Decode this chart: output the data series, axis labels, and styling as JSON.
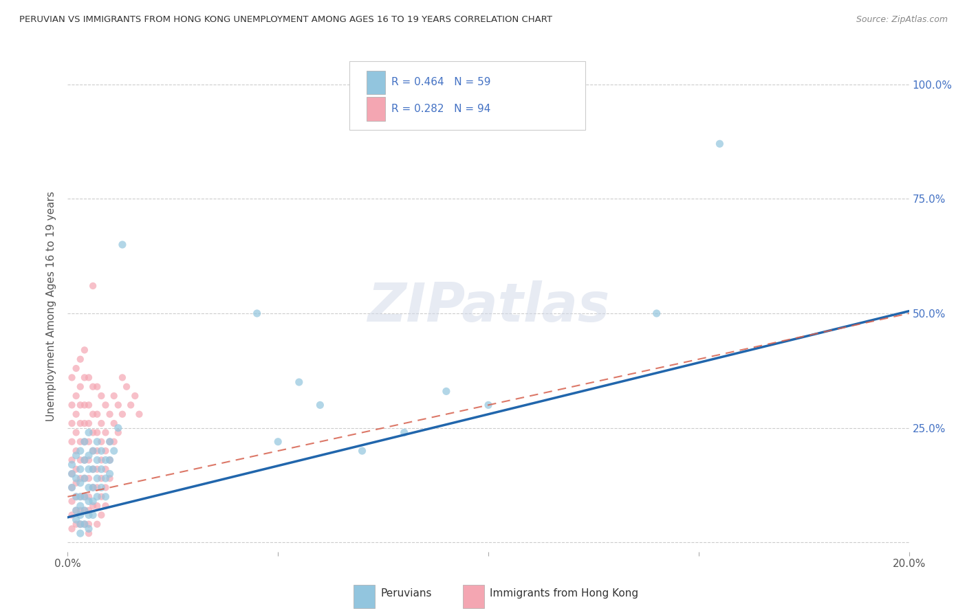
{
  "title": "PERUVIAN VS IMMIGRANTS FROM HONG KONG UNEMPLOYMENT AMONG AGES 16 TO 19 YEARS CORRELATION CHART",
  "source": "Source: ZipAtlas.com",
  "ylabel": "Unemployment Among Ages 16 to 19 years",
  "xlim": [
    0.0,
    0.2
  ],
  "ylim": [
    -0.02,
    1.05
  ],
  "yticks": [
    0.0,
    0.25,
    0.5,
    0.75,
    1.0
  ],
  "ytick_labels_right": [
    "",
    "25.0%",
    "50.0%",
    "75.0%",
    "100.0%"
  ],
  "xticks": [
    0.0,
    0.05,
    0.1,
    0.15,
    0.2
  ],
  "xtick_labels": [
    "0.0%",
    "",
    "",
    "",
    "20.0%"
  ],
  "blue_color": "#92c5de",
  "pink_color": "#f4a6b2",
  "blue_line_color": "#2166ac",
  "pink_line_color": "#d6604d",
  "blue_line_intercept": 0.055,
  "blue_line_slope": 2.25,
  "pink_line_intercept": 0.1,
  "pink_line_slope": 2.0,
  "watermark": "ZIPatlas",
  "blue_scatter": [
    [
      0.001,
      0.17
    ],
    [
      0.001,
      0.15
    ],
    [
      0.001,
      0.12
    ],
    [
      0.002,
      0.19
    ],
    [
      0.002,
      0.14
    ],
    [
      0.002,
      0.1
    ],
    [
      0.002,
      0.07
    ],
    [
      0.002,
      0.05
    ],
    [
      0.003,
      0.2
    ],
    [
      0.003,
      0.16
    ],
    [
      0.003,
      0.13
    ],
    [
      0.003,
      0.1
    ],
    [
      0.003,
      0.08
    ],
    [
      0.003,
      0.06
    ],
    [
      0.003,
      0.04
    ],
    [
      0.003,
      0.02
    ],
    [
      0.004,
      0.22
    ],
    [
      0.004,
      0.18
    ],
    [
      0.004,
      0.14
    ],
    [
      0.004,
      0.1
    ],
    [
      0.004,
      0.07
    ],
    [
      0.004,
      0.04
    ],
    [
      0.005,
      0.24
    ],
    [
      0.005,
      0.19
    ],
    [
      0.005,
      0.16
    ],
    [
      0.005,
      0.12
    ],
    [
      0.005,
      0.09
    ],
    [
      0.005,
      0.06
    ],
    [
      0.005,
      0.03
    ],
    [
      0.006,
      0.2
    ],
    [
      0.006,
      0.16
    ],
    [
      0.006,
      0.12
    ],
    [
      0.006,
      0.09
    ],
    [
      0.006,
      0.06
    ],
    [
      0.007,
      0.22
    ],
    [
      0.007,
      0.18
    ],
    [
      0.007,
      0.14
    ],
    [
      0.007,
      0.1
    ],
    [
      0.008,
      0.2
    ],
    [
      0.008,
      0.16
    ],
    [
      0.008,
      0.12
    ],
    [
      0.009,
      0.18
    ],
    [
      0.009,
      0.14
    ],
    [
      0.009,
      0.1
    ],
    [
      0.01,
      0.22
    ],
    [
      0.01,
      0.18
    ],
    [
      0.01,
      0.15
    ],
    [
      0.011,
      0.2
    ],
    [
      0.012,
      0.25
    ],
    [
      0.013,
      0.65
    ],
    [
      0.045,
      0.5
    ],
    [
      0.05,
      0.22
    ],
    [
      0.055,
      0.35
    ],
    [
      0.06,
      0.3
    ],
    [
      0.07,
      0.2
    ],
    [
      0.08,
      0.24
    ],
    [
      0.09,
      0.33
    ],
    [
      0.1,
      0.3
    ],
    [
      0.14,
      0.5
    ],
    [
      0.155,
      0.87
    ]
  ],
  "pink_scatter": [
    [
      0.001,
      0.36
    ],
    [
      0.001,
      0.3
    ],
    [
      0.001,
      0.26
    ],
    [
      0.001,
      0.22
    ],
    [
      0.001,
      0.18
    ],
    [
      0.001,
      0.15
    ],
    [
      0.001,
      0.12
    ],
    [
      0.001,
      0.09
    ],
    [
      0.001,
      0.06
    ],
    [
      0.001,
      0.03
    ],
    [
      0.002,
      0.38
    ],
    [
      0.002,
      0.32
    ],
    [
      0.002,
      0.28
    ],
    [
      0.002,
      0.24
    ],
    [
      0.002,
      0.2
    ],
    [
      0.002,
      0.16
    ],
    [
      0.002,
      0.13
    ],
    [
      0.002,
      0.1
    ],
    [
      0.002,
      0.07
    ],
    [
      0.002,
      0.04
    ],
    [
      0.003,
      0.4
    ],
    [
      0.003,
      0.34
    ],
    [
      0.003,
      0.3
    ],
    [
      0.003,
      0.26
    ],
    [
      0.003,
      0.22
    ],
    [
      0.003,
      0.18
    ],
    [
      0.003,
      0.14
    ],
    [
      0.003,
      0.1
    ],
    [
      0.003,
      0.07
    ],
    [
      0.003,
      0.04
    ],
    [
      0.004,
      0.42
    ],
    [
      0.004,
      0.36
    ],
    [
      0.004,
      0.3
    ],
    [
      0.004,
      0.26
    ],
    [
      0.004,
      0.22
    ],
    [
      0.004,
      0.18
    ],
    [
      0.004,
      0.14
    ],
    [
      0.004,
      0.1
    ],
    [
      0.004,
      0.07
    ],
    [
      0.004,
      0.04
    ],
    [
      0.005,
      0.36
    ],
    [
      0.005,
      0.3
    ],
    [
      0.005,
      0.26
    ],
    [
      0.005,
      0.22
    ],
    [
      0.005,
      0.18
    ],
    [
      0.005,
      0.14
    ],
    [
      0.005,
      0.1
    ],
    [
      0.005,
      0.07
    ],
    [
      0.005,
      0.04
    ],
    [
      0.005,
      0.02
    ],
    [
      0.006,
      0.56
    ],
    [
      0.006,
      0.34
    ],
    [
      0.006,
      0.28
    ],
    [
      0.006,
      0.24
    ],
    [
      0.006,
      0.2
    ],
    [
      0.006,
      0.16
    ],
    [
      0.006,
      0.12
    ],
    [
      0.006,
      0.08
    ],
    [
      0.007,
      0.34
    ],
    [
      0.007,
      0.28
    ],
    [
      0.007,
      0.24
    ],
    [
      0.007,
      0.2
    ],
    [
      0.007,
      0.16
    ],
    [
      0.007,
      0.12
    ],
    [
      0.007,
      0.08
    ],
    [
      0.007,
      0.04
    ],
    [
      0.008,
      0.32
    ],
    [
      0.008,
      0.26
    ],
    [
      0.008,
      0.22
    ],
    [
      0.008,
      0.18
    ],
    [
      0.008,
      0.14
    ],
    [
      0.008,
      0.1
    ],
    [
      0.008,
      0.06
    ],
    [
      0.009,
      0.3
    ],
    [
      0.009,
      0.24
    ],
    [
      0.009,
      0.2
    ],
    [
      0.009,
      0.16
    ],
    [
      0.009,
      0.12
    ],
    [
      0.009,
      0.08
    ],
    [
      0.01,
      0.28
    ],
    [
      0.01,
      0.22
    ],
    [
      0.01,
      0.18
    ],
    [
      0.01,
      0.14
    ],
    [
      0.011,
      0.32
    ],
    [
      0.011,
      0.26
    ],
    [
      0.011,
      0.22
    ],
    [
      0.012,
      0.3
    ],
    [
      0.012,
      0.24
    ],
    [
      0.013,
      0.36
    ],
    [
      0.013,
      0.28
    ],
    [
      0.014,
      0.34
    ],
    [
      0.015,
      0.3
    ],
    [
      0.016,
      0.32
    ],
    [
      0.017,
      0.28
    ]
  ]
}
